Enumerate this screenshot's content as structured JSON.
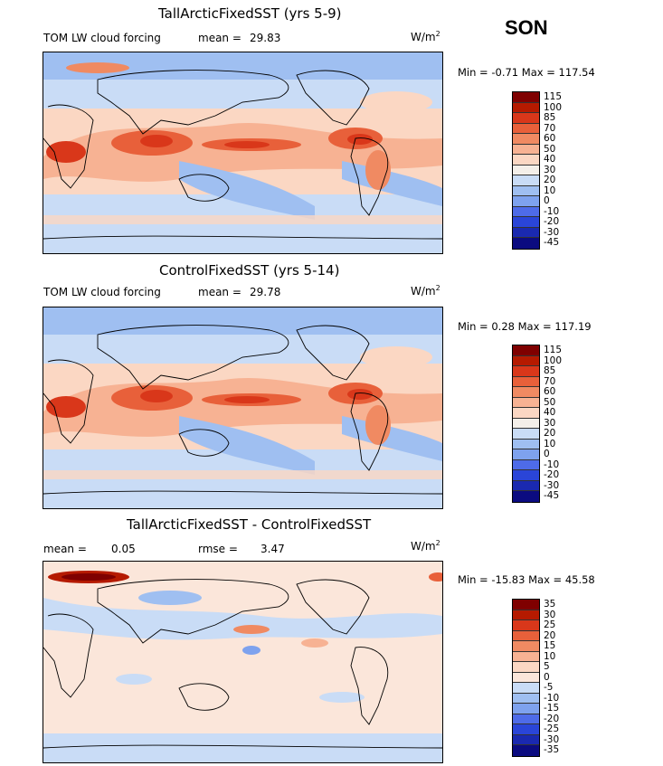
{
  "season": "SON",
  "panels": [
    {
      "title": "TallArcticFixedSST (yrs 5-9)",
      "variable": "TOM LW cloud forcing",
      "stat1_label": "mean =",
      "stat1_value": "29.83",
      "stat2_label": "",
      "stat2_value": "",
      "units": "W/m",
      "units_exp": "2",
      "min_label": "Min =",
      "min_value": "-0.71",
      "max_label": "Max =",
      "max_value": "117.54",
      "levels": [
        "115",
        "100",
        "85",
        "70",
        "60",
        "50",
        "40",
        "30",
        "20",
        "10",
        "0",
        "-10",
        "-20",
        "-30",
        "-45"
      ]
    },
    {
      "title": "ControlFixedSST (yrs 5-14)",
      "variable": "TOM LW cloud forcing",
      "stat1_label": "mean =",
      "stat1_value": "29.78",
      "stat2_label": "",
      "stat2_value": "",
      "units": "W/m",
      "units_exp": "2",
      "min_label": "Min =",
      "min_value": "0.28",
      "max_label": "Max =",
      "max_value": "117.19",
      "levels": [
        "115",
        "100",
        "85",
        "70",
        "60",
        "50",
        "40",
        "30",
        "20",
        "10",
        "0",
        "-10",
        "-20",
        "-30",
        "-45"
      ]
    },
    {
      "title": "TallArcticFixedSST - ControlFixedSST",
      "variable": "",
      "stat1_label": "mean =",
      "stat1_value": "0.05",
      "stat2_label": "rmse =",
      "stat2_value": "3.47",
      "units": "W/m",
      "units_exp": "2",
      "min_label": "Min =",
      "min_value": "-15.83",
      "max_label": "Max =",
      "max_value": "45.58",
      "levels": [
        "35",
        "30",
        "25",
        "20",
        "15",
        "10",
        "5",
        "0",
        "-5",
        "-10",
        "-15",
        "-20",
        "-25",
        "-30",
        "-35"
      ]
    }
  ],
  "colors": {
    "palette": [
      "#7f0000",
      "#b51a00",
      "#d9371a",
      "#e8603a",
      "#f08a62",
      "#f7b293",
      "#fbd7c3",
      "#f4efe9",
      "#c9dcf6",
      "#9fbff1",
      "#7ea2ee",
      "#4e6be8",
      "#2a45d8",
      "#1a29b0",
      "#0b0b80"
    ],
    "palette_diff": [
      "#7f0000",
      "#b51a00",
      "#d9371a",
      "#e8603a",
      "#f08a62",
      "#f7b293",
      "#fbd7c3",
      "#fbe6da",
      "#c9dcf6",
      "#9fbff1",
      "#7ea2ee",
      "#4e6be8",
      "#2a45d8",
      "#1a29b0",
      "#0b0b80"
    ],
    "land_outline": "#000000"
  }
}
